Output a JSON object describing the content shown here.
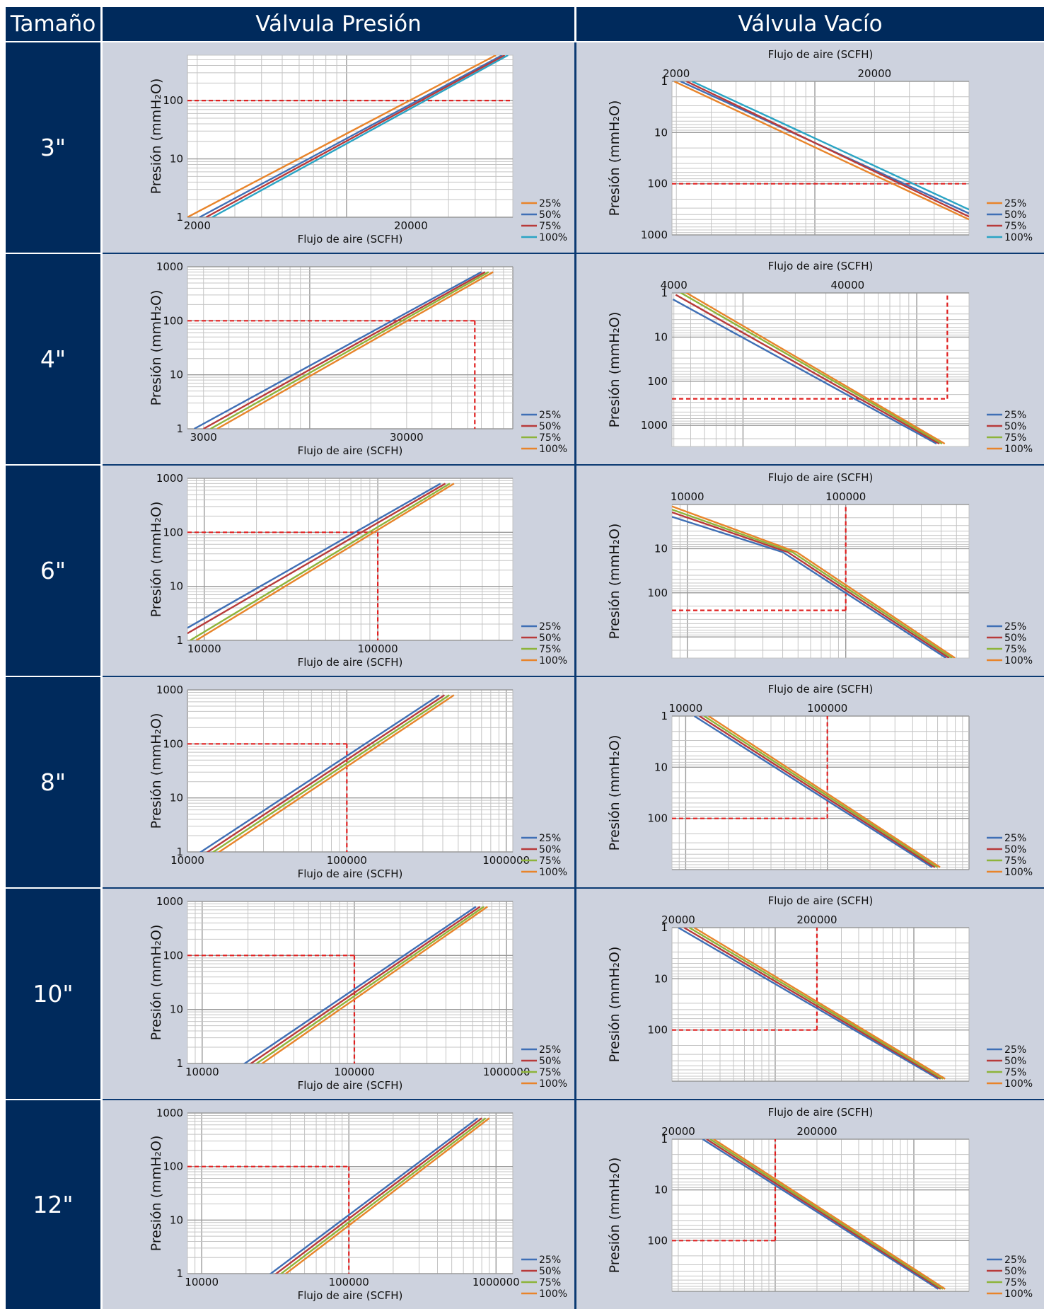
{
  "headers": {
    "size": "Tamaño",
    "pressure": "Válvula Presión",
    "vacuum": "Válvula Vacío"
  },
  "legend_labels": [
    "25%",
    "50%",
    "75%",
    "100%"
  ],
  "colors": {
    "header_bg": "#002a5c",
    "panel_bg": "#cdd2de",
    "ref_line": "#e02020",
    "pct25": "#3f6fb5",
    "pct50": "#b83a3a",
    "pct75": "#8db43a",
    "pct100": "#e8842a",
    "cyan": "#2aa4c4"
  },
  "sizes": [
    "3\"",
    "4\"",
    "6\"",
    "8\"",
    "10\"",
    "12\""
  ],
  "chart_data": [
    {
      "type": "line",
      "panel": "pressure",
      "size": "3\"",
      "xlabel": "Flujo de aire (SCFH)",
      "ylabel": "Presión (mmH₂O)",
      "x_scale": "log",
      "y_scale": "log",
      "xlim": [
        1800,
        60000
      ],
      "ylim": [
        1,
        600
      ],
      "xticks": [
        2000,
        20000
      ],
      "yticks": [
        1,
        10,
        100
      ],
      "reference": {
        "y": 100
      },
      "series": [
        {
          "name": "25%",
          "color": "#e8842a",
          "points": [
            [
              1800,
              1
            ],
            [
              50000,
              600
            ]
          ]
        },
        {
          "name": "50%",
          "color": "#3f6fb5",
          "points": [
            [
              2050,
              1
            ],
            [
              53500,
              600
            ]
          ]
        },
        {
          "name": "75%",
          "color": "#b83a3a",
          "points": [
            [
              2200,
              1
            ],
            [
              55000,
              600
            ]
          ]
        },
        {
          "name": "100%",
          "color": "#2aa4c4",
          "points": [
            [
              2350,
              1
            ],
            [
              57000,
              600
            ]
          ]
        }
      ]
    },
    {
      "type": "line",
      "panel": "vacuum",
      "size": "3\"",
      "xlabel": "Flujo de aire (SCFH)",
      "ylabel": "Presión (mmH₂O)",
      "x_scale": "log",
      "y_scale": "log",
      "y_inverted": true,
      "x_axis": "top",
      "xlim": [
        1900,
        60000
      ],
      "ylim": [
        1,
        1000
      ],
      "xticks": [
        2000,
        20000
      ],
      "yticks": [
        1,
        10,
        100,
        1000
      ],
      "reference": {
        "y": 100
      },
      "series": [
        {
          "name": "25%",
          "color": "#e8842a",
          "points": [
            [
              1950,
              1
            ],
            [
              60000,
              500
            ]
          ]
        },
        {
          "name": "50%",
          "color": "#3f6fb5",
          "points": [
            [
              2100,
              1
            ],
            [
              60000,
              380
            ]
          ]
        },
        {
          "name": "75%",
          "color": "#b83a3a",
          "points": [
            [
              2250,
              1
            ],
            [
              60000,
              440
            ]
          ]
        },
        {
          "name": "100%",
          "color": "#2aa4c4",
          "points": [
            [
              2400,
              1
            ],
            [
              60000,
              320
            ]
          ]
        }
      ]
    },
    {
      "type": "line",
      "panel": "pressure",
      "size": "4\"",
      "xlabel": "Flujo de aire (SCFH)",
      "ylabel": "Presión (mmH₂O)",
      "x_scale": "log",
      "y_scale": "log",
      "xlim": [
        2500,
        100000
      ],
      "ylim": [
        1,
        1000
      ],
      "xticks": [
        3000,
        30000
      ],
      "yticks": [
        1,
        10,
        100,
        1000
      ],
      "reference": {
        "x": 65000,
        "y": 100
      },
      "series": [
        {
          "name": "25%",
          "color": "#3f6fb5",
          "points": [
            [
              2700,
              1
            ],
            [
              70000,
              800
            ]
          ]
        },
        {
          "name": "50%",
          "color": "#b83a3a",
          "points": [
            [
              3000,
              1
            ],
            [
              73000,
              800
            ]
          ]
        },
        {
          "name": "75%",
          "color": "#8db43a",
          "points": [
            [
              3250,
              1
            ],
            [
              76000,
              800
            ]
          ]
        },
        {
          "name": "100%",
          "color": "#e8842a",
          "points": [
            [
              3500,
              1
            ],
            [
              80000,
              800
            ]
          ]
        }
      ]
    },
    {
      "type": "line",
      "panel": "vacuum",
      "size": "4\"",
      "xlabel": "Flujo de aire (SCFH)",
      "ylabel": "Presión (mmH₂O)",
      "x_scale": "log",
      "y_scale": "log",
      "y_inverted": true,
      "x_axis": "top",
      "xlim": [
        3900,
        200000
      ],
      "ylim": [
        1,
        3000
      ],
      "xticks": [
        4000,
        40000
      ],
      "yticks": [
        1,
        10,
        100,
        1000
      ],
      "reference": {
        "x": 150000,
        "y": 250
      },
      "series": [
        {
          "name": "25%",
          "color": "#3f6fb5",
          "points": [
            [
              3950,
              1.4
            ],
            [
              130000,
              2600
            ]
          ]
        },
        {
          "name": "50%",
          "color": "#b83a3a",
          "points": [
            [
              4100,
              1.1
            ],
            [
              135000,
              2600
            ]
          ]
        },
        {
          "name": "75%",
          "color": "#8db43a",
          "points": [
            [
              4200,
              0.9
            ],
            [
              140000,
              2600
            ]
          ]
        },
        {
          "name": "100%",
          "color": "#e8842a",
          "points": [
            [
              4300,
              0.8
            ],
            [
              145000,
              2600
            ]
          ]
        }
      ]
    },
    {
      "type": "line",
      "panel": "pressure",
      "size": "6\"",
      "xlabel": "Flujo de aire (SCFH)",
      "ylabel": "Presión (mmH₂O)",
      "x_scale": "log",
      "y_scale": "log",
      "xlim": [
        8000,
        600000
      ],
      "ylim": [
        1,
        1000
      ],
      "xticks": [
        10000,
        100000
      ],
      "yticks": [
        1,
        10,
        100,
        1000
      ],
      "reference": {
        "x": 100000,
        "y": 100
      },
      "series": [
        {
          "name": "25%",
          "color": "#3f6fb5",
          "points": [
            [
              8000,
              1.7
            ],
            [
              230000,
              800
            ]
          ]
        },
        {
          "name": "50%",
          "color": "#b83a3a",
          "points": [
            [
              8000,
              1.35
            ],
            [
              245000,
              800
            ]
          ]
        },
        {
          "name": "75%",
          "color": "#8db43a",
          "points": [
            [
              8300,
              1
            ],
            [
              260000,
              800
            ]
          ]
        },
        {
          "name": "100%",
          "color": "#e8842a",
          "points": [
            [
              9000,
              1
            ],
            [
              275000,
              800
            ]
          ]
        }
      ]
    },
    {
      "type": "line",
      "panel": "vacuum",
      "size": "6\"",
      "xlabel": "Flujo de aire (SCFH)",
      "ylabel": "Presión (mmH₂O)",
      "x_scale": "log",
      "y_scale": "log",
      "y_inverted": true,
      "x_axis": "top",
      "xlim": [
        8000,
        600000
      ],
      "ylim": [
        1,
        3000
      ],
      "xticks": [
        10000,
        100000
      ],
      "yticks": [
        10,
        100
      ],
      "reference": {
        "x": 100000,
        "y": 250
      },
      "series": [
        {
          "name": "25%",
          "color": "#3f6fb5",
          "points": [
            [
              8000,
              1.9
            ],
            [
              40000,
              12
            ],
            [
              430000,
              3000
            ]
          ]
        },
        {
          "name": "50%",
          "color": "#b83a3a",
          "points": [
            [
              8000,
              1.5
            ],
            [
              43000,
              12
            ],
            [
              450000,
              3000
            ]
          ]
        },
        {
          "name": "75%",
          "color": "#8db43a",
          "points": [
            [
              8000,
              1.3
            ],
            [
              46000,
              12
            ],
            [
              470000,
              3000
            ]
          ]
        },
        {
          "name": "100%",
          "color": "#e8842a",
          "points": [
            [
              8000,
              1.1
            ],
            [
              49000,
              12
            ],
            [
              490000,
              3000
            ]
          ]
        }
      ]
    },
    {
      "type": "line",
      "panel": "pressure",
      "size": "8\"",
      "xlabel": "Flujo de aire (SCFH)",
      "ylabel": "Presión (mmH₂O)",
      "x_scale": "log",
      "y_scale": "log",
      "xlim": [
        10000,
        1100000
      ],
      "ylim": [
        1,
        1000
      ],
      "xticks": [
        10000,
        100000,
        1000000
      ],
      "yticks": [
        1,
        10,
        100,
        1000
      ],
      "reference": {
        "x": 100000,
        "y": 100
      },
      "series": [
        {
          "name": "25%",
          "color": "#3f6fb5",
          "points": [
            [
              11500,
              0.9
            ],
            [
              380000,
              800
            ]
          ]
        },
        {
          "name": "50%",
          "color": "#b83a3a",
          "points": [
            [
              12700,
              0.9
            ],
            [
              410000,
              800
            ]
          ]
        },
        {
          "name": "75%",
          "color": "#8db43a",
          "points": [
            [
              13800,
              0.9
            ],
            [
              440000,
              800
            ]
          ]
        },
        {
          "name": "100%",
          "color": "#e8842a",
          "points": [
            [
              15000,
              0.9
            ],
            [
              470000,
              800
            ]
          ]
        }
      ]
    },
    {
      "type": "line",
      "panel": "vacuum",
      "size": "8\"",
      "xlabel": "Flujo de aire (SCFH)",
      "ylabel": "Presión (mmH₂O)",
      "x_scale": "log",
      "y_scale": "log",
      "y_inverted": true,
      "x_axis": "top",
      "xlim": [
        8000,
        1000000
      ],
      "ylim": [
        1,
        1000
      ],
      "xticks": [
        10000,
        100000
      ],
      "yticks": [
        1,
        10,
        100
      ],
      "reference": {
        "x": 100000,
        "y": 100
      },
      "series": [
        {
          "name": "25%",
          "color": "#3f6fb5",
          "points": [
            [
              11500,
              1
            ],
            [
              550000,
              900
            ]
          ]
        },
        {
          "name": "50%",
          "color": "#b83a3a",
          "points": [
            [
              12500,
              1
            ],
            [
              575000,
              900
            ]
          ]
        },
        {
          "name": "75%",
          "color": "#8db43a",
          "points": [
            [
              13500,
              1
            ],
            [
              600000,
              900
            ]
          ]
        },
        {
          "name": "100%",
          "color": "#e8842a",
          "points": [
            [
              14500,
              1
            ],
            [
              625000,
              900
            ]
          ]
        }
      ]
    },
    {
      "type": "line",
      "panel": "pressure",
      "size": "10\"",
      "xlabel": "Flujo de aire (SCFH)",
      "ylabel": "Presión (mmH₂O)",
      "x_scale": "log",
      "y_scale": "log",
      "xlim": [
        8000,
        1100000
      ],
      "ylim": [
        1,
        1000
      ],
      "xticks": [
        10000,
        100000,
        1000000
      ],
      "yticks": [
        1,
        10,
        100,
        1000
      ],
      "reference": {
        "x": 100000,
        "y": 100
      },
      "series": [
        {
          "name": "25%",
          "color": "#3f6fb5",
          "points": [
            [
              18000,
              0.9
            ],
            [
              630000,
              800
            ]
          ]
        },
        {
          "name": "50%",
          "color": "#b83a3a",
          "points": [
            [
              19800,
              0.9
            ],
            [
              670000,
              800
            ]
          ]
        },
        {
          "name": "75%",
          "color": "#8db43a",
          "points": [
            [
              21600,
              0.9
            ],
            [
              710000,
              800
            ]
          ]
        },
        {
          "name": "100%",
          "color": "#e8842a",
          "points": [
            [
              23500,
              0.9
            ],
            [
              750000,
              800
            ]
          ]
        }
      ]
    },
    {
      "type": "line",
      "panel": "vacuum",
      "size": "10\"",
      "xlabel": "Flujo de aire (SCFH)",
      "ylabel": "Presión (mmH₂O)",
      "x_scale": "log",
      "y_scale": "log",
      "y_inverted": true,
      "x_axis": "top",
      "xlim": [
        18000,
        2500000
      ],
      "ylim": [
        1,
        1000
      ],
      "xticks": [
        20000,
        200000
      ],
      "yticks": [
        1,
        10,
        100
      ],
      "reference": {
        "x": 200000,
        "y": 100
      },
      "series": [
        {
          "name": "25%",
          "color": "#3f6fb5",
          "points": [
            [
              20000,
              1
            ],
            [
              1500000,
              900
            ]
          ]
        },
        {
          "name": "50%",
          "color": "#b83a3a",
          "points": [
            [
              22000,
              1
            ],
            [
              1560000,
              900
            ]
          ]
        },
        {
          "name": "75%",
          "color": "#8db43a",
          "points": [
            [
              24000,
              1
            ],
            [
              1620000,
              900
            ]
          ]
        },
        {
          "name": "100%",
          "color": "#e8842a",
          "points": [
            [
              26000,
              1
            ],
            [
              1680000,
              900
            ]
          ]
        }
      ]
    },
    {
      "type": "line",
      "panel": "pressure",
      "size": "12\"",
      "xlabel": "Flujo de aire (SCFH)",
      "ylabel": "Presión (mmH₂O)",
      "x_scale": "log",
      "y_scale": "log",
      "xlim": [
        8000,
        1300000
      ],
      "ylim": [
        1,
        1000
      ],
      "xticks": [
        10000,
        100000,
        1000000
      ],
      "yticks": [
        1,
        10,
        100,
        1000
      ],
      "reference": {
        "x": 100000,
        "y": 100
      },
      "series": [
        {
          "name": "25%",
          "color": "#3f6fb5",
          "points": [
            [
              28000,
              0.9
            ],
            [
              750000,
              800
            ]
          ]
        },
        {
          "name": "50%",
          "color": "#b83a3a",
          "points": [
            [
              30500,
              0.9
            ],
            [
              800000,
              800
            ]
          ]
        },
        {
          "name": "75%",
          "color": "#8db43a",
          "points": [
            [
              33000,
              0.9
            ],
            [
              850000,
              800
            ]
          ]
        },
        {
          "name": "100%",
          "color": "#e8842a",
          "points": [
            [
              35500,
              0.9
            ],
            [
              900000,
              800
            ]
          ]
        }
      ]
    },
    {
      "type": "line",
      "panel": "vacuum",
      "size": "12\"",
      "xlabel": "Flujo de aire (SCFH)",
      "ylabel": "Presión (mmH₂O)",
      "x_scale": "log",
      "y_scale": "log",
      "y_inverted": true,
      "x_axis": "top",
      "xlim": [
        18000,
        2500000
      ],
      "ylim": [
        1,
        1000
      ],
      "xticks": [
        20000,
        200000
      ],
      "yticks": [
        1,
        10,
        100
      ],
      "reference": {
        "x": 100000,
        "y": 100
      },
      "series": [
        {
          "name": "25%",
          "color": "#3f6fb5",
          "points": [
            [
              30000,
              1
            ],
            [
              1500000,
              900
            ]
          ]
        },
        {
          "name": "50%",
          "color": "#b83a3a",
          "points": [
            [
              32000,
              1
            ],
            [
              1560000,
              900
            ]
          ]
        },
        {
          "name": "75%",
          "color": "#8db43a",
          "points": [
            [
              34000,
              1
            ],
            [
              1620000,
              900
            ]
          ]
        },
        {
          "name": "100%",
          "color": "#e8842a",
          "points": [
            [
              36000,
              1
            ],
            [
              1680000,
              900
            ]
          ]
        }
      ]
    }
  ]
}
